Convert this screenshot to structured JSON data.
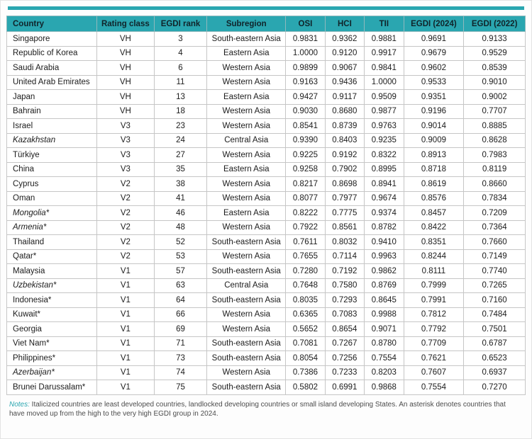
{
  "accent_color": "#2aa6b0",
  "table": {
    "columns": [
      "Country",
      "Rating class",
      "EGDI rank",
      "Subregion",
      "OSI",
      "HCI",
      "TII",
      "EGDI (2024)",
      "EGDI  (2022)"
    ],
    "rows": [
      {
        "country": "Singapore",
        "rating": "VH",
        "rank": "3",
        "subregion": "South-eastern Asia",
        "osi": "0.9831",
        "hci": "0.9362",
        "tii": "0.9881",
        "egdi2024": "0.9691",
        "egdi2022": "0.9133",
        "italic": false
      },
      {
        "country": "Republic of Korea",
        "rating": "VH",
        "rank": "4",
        "subregion": "Eastern Asia",
        "osi": "1.0000",
        "hci": "0.9120",
        "tii": "0.9917",
        "egdi2024": "0.9679",
        "egdi2022": "0.9529",
        "italic": false
      },
      {
        "country": "Saudi Arabia",
        "rating": "VH",
        "rank": "6",
        "subregion": "Western Asia",
        "osi": "0.9899",
        "hci": "0.9067",
        "tii": "0.9841",
        "egdi2024": "0.9602",
        "egdi2022": "0.8539",
        "italic": false
      },
      {
        "country": "United Arab Emirates",
        "rating": "VH",
        "rank": "11",
        "subregion": "Western Asia",
        "osi": "0.9163",
        "hci": "0.9436",
        "tii": "1.0000",
        "egdi2024": "0.9533",
        "egdi2022": "0.9010",
        "italic": false
      },
      {
        "country": "Japan",
        "rating": "VH",
        "rank": "13",
        "subregion": "Eastern Asia",
        "osi": "0.9427",
        "hci": "0.9117",
        "tii": "0.9509",
        "egdi2024": "0.9351",
        "egdi2022": "0.9002",
        "italic": false
      },
      {
        "country": "Bahrain",
        "rating": "VH",
        "rank": "18",
        "subregion": "Western Asia",
        "osi": "0.9030",
        "hci": "0.8680",
        "tii": "0.9877",
        "egdi2024": "0.9196",
        "egdi2022": "0.7707",
        "italic": false
      },
      {
        "country": "Israel",
        "rating": "V3",
        "rank": "23",
        "subregion": "Western Asia",
        "osi": "0.8541",
        "hci": "0.8739",
        "tii": "0.9763",
        "egdi2024": "0.9014",
        "egdi2022": "0.8885",
        "italic": false
      },
      {
        "country": "Kazakhstan",
        "rating": "V3",
        "rank": "24",
        "subregion": "Central Asia",
        "osi": "0.9390",
        "hci": "0.8403",
        "tii": "0.9235",
        "egdi2024": "0.9009",
        "egdi2022": "0.8628",
        "italic": true
      },
      {
        "country": "Türkiye",
        "rating": "V3",
        "rank": "27",
        "subregion": "Western Asia",
        "osi": "0.9225",
        "hci": "0.9192",
        "tii": "0.8322",
        "egdi2024": "0.8913",
        "egdi2022": "0.7983",
        "italic": false
      },
      {
        "country": "China",
        "rating": "V3",
        "rank": "35",
        "subregion": "Eastern Asia",
        "osi": "0.9258",
        "hci": "0.7902",
        "tii": "0.8995",
        "egdi2024": "0.8718",
        "egdi2022": "0.8119",
        "italic": false
      },
      {
        "country": "Cyprus",
        "rating": "V2",
        "rank": "38",
        "subregion": "Western Asia",
        "osi": "0.8217",
        "hci": "0.8698",
        "tii": "0.8941",
        "egdi2024": "0.8619",
        "egdi2022": "0.8660",
        "italic": false
      },
      {
        "country": "Oman",
        "rating": "V2",
        "rank": "41",
        "subregion": "Western Asia",
        "osi": "0.8077",
        "hci": "0.7977",
        "tii": "0.9674",
        "egdi2024": "0.8576",
        "egdi2022": "0.7834",
        "italic": false
      },
      {
        "country": "Mongolia*",
        "rating": "V2",
        "rank": "46",
        "subregion": "Eastern Asia",
        "osi": "0.8222",
        "hci": "0.7775",
        "tii": "0.9374",
        "egdi2024": "0.8457",
        "egdi2022": "0.7209",
        "italic": true
      },
      {
        "country": "Armenia*",
        "rating": "V2",
        "rank": "48",
        "subregion": "Western Asia",
        "osi": "0.7922",
        "hci": "0.8561",
        "tii": "0.8782",
        "egdi2024": "0.8422",
        "egdi2022": "0.7364",
        "italic": true
      },
      {
        "country": "Thailand",
        "rating": "V2",
        "rank": "52",
        "subregion": "South-eastern Asia",
        "osi": "0.7611",
        "hci": "0.8032",
        "tii": "0.9410",
        "egdi2024": "0.8351",
        "egdi2022": "0.7660",
        "italic": false
      },
      {
        "country": "Qatar*",
        "rating": "V2",
        "rank": "53",
        "subregion": "Western Asia",
        "osi": "0.7655",
        "hci": "0.7114",
        "tii": "0.9963",
        "egdi2024": "0.8244",
        "egdi2022": "0.7149",
        "italic": false
      },
      {
        "country": "Malaysia",
        "rating": "V1",
        "rank": "57",
        "subregion": "South-eastern Asia",
        "osi": "0.7280",
        "hci": "0.7192",
        "tii": "0.9862",
        "egdi2024": "0.8111",
        "egdi2022": "0.7740",
        "italic": false
      },
      {
        "country": "Uzbekistan*",
        "rating": "V1",
        "rank": "63",
        "subregion": "Central Asia",
        "osi": "0.7648",
        "hci": "0.7580",
        "tii": "0.8769",
        "egdi2024": "0.7999",
        "egdi2022": "0.7265",
        "italic": true
      },
      {
        "country": "Indonesia*",
        "rating": "V1",
        "rank": "64",
        "subregion": "South-eastern Asia",
        "osi": "0.8035",
        "hci": "0.7293",
        "tii": "0.8645",
        "egdi2024": "0.7991",
        "egdi2022": "0.7160",
        "italic": false
      },
      {
        "country": "Kuwait*",
        "rating": "V1",
        "rank": "66",
        "subregion": "Western Asia",
        "osi": "0.6365",
        "hci": "0.7083",
        "tii": "0.9988",
        "egdi2024": "0.7812",
        "egdi2022": "0.7484",
        "italic": false
      },
      {
        "country": "Georgia",
        "rating": "V1",
        "rank": "69",
        "subregion": "Western Asia",
        "osi": "0.5652",
        "hci": "0.8654",
        "tii": "0.9071",
        "egdi2024": "0.7792",
        "egdi2022": "0.7501",
        "italic": false
      },
      {
        "country": "Viet Nam*",
        "rating": "V1",
        "rank": "71",
        "subregion": "South-eastern Asia",
        "osi": "0.7081",
        "hci": "0.7267",
        "tii": "0.8780",
        "egdi2024": "0.7709",
        "egdi2022": "0.6787",
        "italic": false
      },
      {
        "country": "Philippines*",
        "rating": "V1",
        "rank": "73",
        "subregion": "South-eastern Asia",
        "osi": "0.8054",
        "hci": "0.7256",
        "tii": "0.7554",
        "egdi2024": "0.7621",
        "egdi2022": "0.6523",
        "italic": false
      },
      {
        "country": "Azerbaijan*",
        "rating": "V1",
        "rank": "74",
        "subregion": "Western Asia",
        "osi": "0.7386",
        "hci": "0.7233",
        "tii": "0.8203",
        "egdi2024": "0.7607",
        "egdi2022": "0.6937",
        "italic": true
      },
      {
        "country": "Brunei Darussalam*",
        "rating": "V1",
        "rank": "75",
        "subregion": "South-eastern Asia",
        "osi": "0.5802",
        "hci": "0.6991",
        "tii": "0.9868",
        "egdi2024": "0.7554",
        "egdi2022": "0.7270",
        "italic": false
      }
    ]
  },
  "notes": {
    "label": "Notes:",
    "text": " Italicized countries are least developed countries, landlocked developing countries or small island developing States. An asterisk denotes countries that have moved up from the high to the very high EGDI group in 2024."
  }
}
